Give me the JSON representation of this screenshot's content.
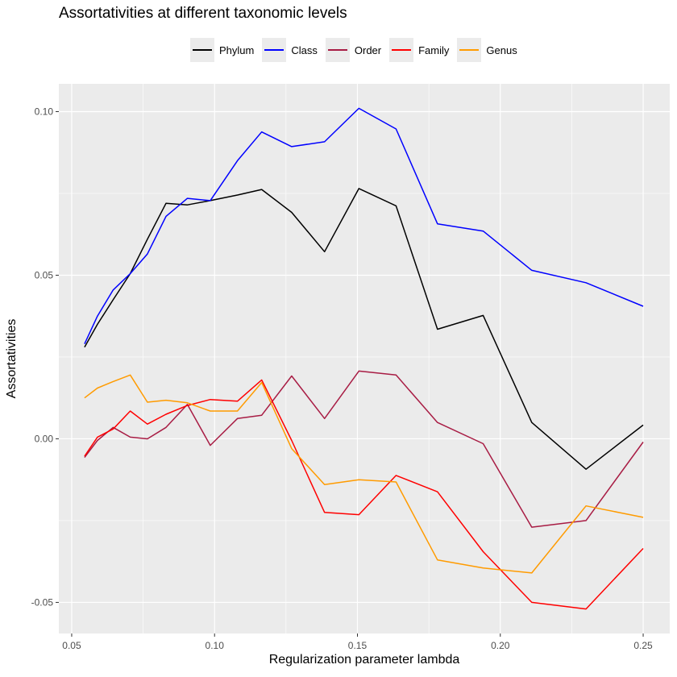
{
  "chart_data": {
    "type": "line",
    "title": "Assortativities at different taxonomic levels",
    "xlabel": "Regularization parameter lambda",
    "ylabel": "Assortativities",
    "xlim": [
      0.0455,
      0.2593
    ],
    "ylim": [
      -0.0595,
      0.1085
    ],
    "x_ticks": [
      0.05,
      0.1,
      0.15,
      0.2,
      0.25
    ],
    "x_tick_labels": [
      "0.05",
      "0.10",
      "0.15",
      "0.20",
      "0.25"
    ],
    "y_ticks": [
      -0.05,
      0.0,
      0.05,
      0.1
    ],
    "y_tick_labels": [
      "-0.05",
      "0.00",
      "0.05",
      "0.10"
    ],
    "grid": true,
    "legend_position": "top",
    "x": [
      0.0545,
      0.059,
      0.0645,
      0.0705,
      0.0765,
      0.083,
      0.0905,
      0.0985,
      0.108,
      0.1165,
      0.127,
      0.1385,
      0.1505,
      0.1635,
      0.178,
      0.194,
      0.211,
      0.23,
      0.25
    ],
    "series": [
      {
        "name": "Phylum",
        "color": "#000000",
        "values": [
          0.028,
          0.035,
          0.0425,
          0.0505,
          0.061,
          0.072,
          0.0715,
          0.0728,
          0.0745,
          0.0762,
          0.0692,
          0.0572,
          0.0765,
          0.0712,
          0.0335,
          0.0377,
          0.005,
          -0.0093,
          0.0042
        ]
      },
      {
        "name": "Class",
        "color": "#0000ff",
        "values": [
          0.029,
          0.0375,
          0.0455,
          0.0505,
          0.0565,
          0.068,
          0.0735,
          0.0728,
          0.085,
          0.0938,
          0.0893,
          0.0908,
          0.101,
          0.0947,
          0.0657,
          0.0635,
          0.0515,
          0.0477,
          0.0405
        ]
      },
      {
        "name": "Order",
        "color": "#a81c44",
        "values": [
          -0.0057,
          -0.0005,
          0.0035,
          0.0005,
          0.0,
          0.0035,
          0.0105,
          -0.002,
          0.0062,
          0.0072,
          0.0192,
          0.0062,
          0.0207,
          0.0195,
          0.005,
          -0.0015,
          -0.027,
          -0.025,
          -0.001
        ]
      },
      {
        "name": "Family",
        "color": "#ff0000",
        "values": [
          -0.0053,
          0.0005,
          0.003,
          0.0085,
          0.0045,
          0.0075,
          0.0102,
          0.012,
          0.0115,
          0.018,
          -0.0005,
          -0.0225,
          -0.0232,
          -0.0112,
          -0.0162,
          -0.0345,
          -0.05,
          -0.052,
          -0.0335
        ]
      },
      {
        "name": "Genus",
        "color": "#ff9b00",
        "values": [
          0.0125,
          0.0155,
          0.0175,
          0.0195,
          0.0112,
          0.0118,
          0.011,
          0.0085,
          0.0085,
          0.0172,
          -0.003,
          -0.014,
          -0.0125,
          -0.0132,
          -0.037,
          -0.0395,
          -0.041,
          -0.0205,
          -0.024
        ]
      }
    ]
  }
}
